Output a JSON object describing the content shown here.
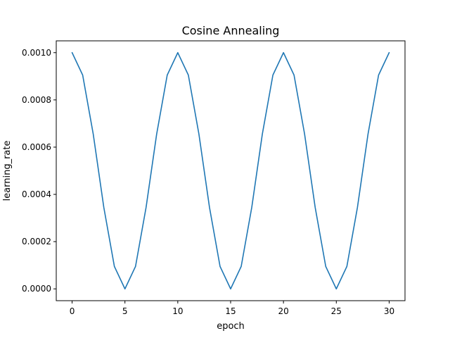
{
  "chart_data": {
    "type": "line",
    "title": "Cosine Annealing",
    "xlabel": "epoch",
    "ylabel": "learning_rate",
    "xlim": [
      -1.5,
      31.5
    ],
    "ylim": [
      -5e-05,
      0.00105
    ],
    "xticks": [
      0,
      5,
      10,
      15,
      20,
      25,
      30
    ],
    "yticks": [
      0.0,
      0.0002,
      0.0004,
      0.0006,
      0.0008,
      0.001
    ],
    "grid": false,
    "series": [
      {
        "color": "#1f77b4",
        "x": [
          0,
          1,
          2,
          3,
          4,
          5,
          6,
          7,
          8,
          9,
          10,
          11,
          12,
          13,
          14,
          15,
          16,
          17,
          18,
          19,
          20,
          21,
          22,
          23,
          24,
          25,
          26,
          27,
          28,
          29,
          30
        ],
        "y": [
          0.001,
          0.000905,
          0.000655,
          0.000345,
          9.5e-05,
          0.0,
          9.5e-05,
          0.000345,
          0.000655,
          0.000905,
          0.001,
          0.000905,
          0.000655,
          0.000345,
          9.5e-05,
          0.0,
          9.5e-05,
          0.000345,
          0.000655,
          0.000905,
          0.001,
          0.000905,
          0.000655,
          0.000345,
          9.5e-05,
          0.0,
          9.5e-05,
          0.000345,
          0.000655,
          0.000905,
          0.001
        ]
      }
    ]
  }
}
